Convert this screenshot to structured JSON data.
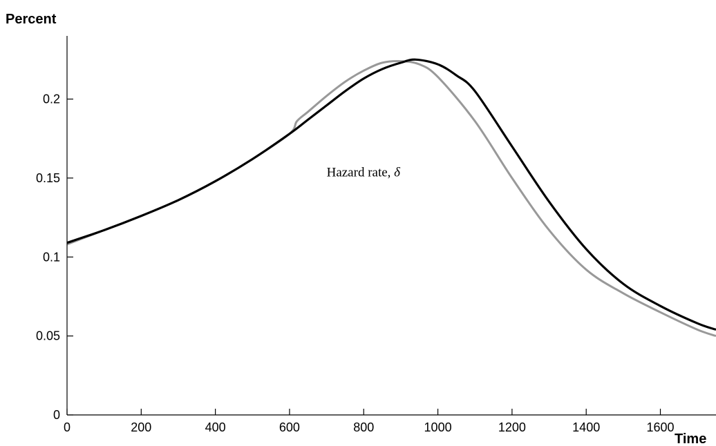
{
  "chart_data": {
    "type": "line",
    "title": "",
    "xlabel": "Time",
    "ylabel": "Percent",
    "xlim": [
      0,
      1750
    ],
    "ylim": [
      0,
      0.24
    ],
    "x_ticks": [
      0,
      200,
      400,
      600,
      800,
      1000,
      1200,
      1400,
      1600
    ],
    "x_tick_labels": [
      "0",
      "200",
      "400",
      "600",
      "800",
      "1000",
      "1200",
      "1400",
      "1600"
    ],
    "y_ticks": [
      0,
      0.05,
      0.1,
      0.15,
      0.2
    ],
    "y_tick_labels": [
      "0",
      "0.05",
      "0.1",
      "0.15",
      "0.2"
    ],
    "grid": false,
    "legend": "none",
    "annotations": [
      {
        "text": "Hazard rate, ",
        "symbol": "δ",
        "x": 700,
        "y": 0.151
      }
    ],
    "series": [
      {
        "color": "#999999",
        "x": [
          0,
          100,
          200,
          300,
          400,
          500,
          600,
          620,
          650,
          700,
          750,
          800,
          850,
          900,
          950,
          1000,
          1100,
          1200,
          1300,
          1400,
          1500,
          1600,
          1700,
          1750
        ],
        "y": [
          0.108,
          0.117,
          0.126,
          0.136,
          0.148,
          0.162,
          0.178,
          0.186,
          0.192,
          0.202,
          0.211,
          0.218,
          0.223,
          0.224,
          0.222,
          0.214,
          0.186,
          0.15,
          0.117,
          0.092,
          0.077,
          0.065,
          0.054,
          0.05
        ]
      },
      {
        "color": "#000000",
        "x": [
          0,
          100,
          200,
          300,
          400,
          500,
          600,
          650,
          700,
          750,
          800,
          850,
          900,
          940,
          1000,
          1050,
          1100,
          1200,
          1300,
          1400,
          1500,
          1600,
          1700,
          1750
        ],
        "y": [
          0.109,
          0.117,
          0.126,
          0.136,
          0.148,
          0.162,
          0.178,
          0.187,
          0.196,
          0.205,
          0.213,
          0.219,
          0.223,
          0.225,
          0.222,
          0.215,
          0.205,
          0.17,
          0.135,
          0.105,
          0.083,
          0.069,
          0.058,
          0.054
        ]
      }
    ]
  }
}
